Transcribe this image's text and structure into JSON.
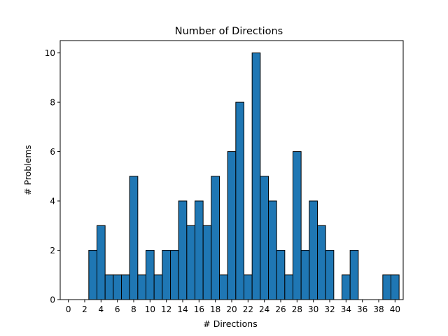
{
  "chart_data": {
    "type": "bar",
    "title": "Number of Directions",
    "xlabel": "# Directions",
    "ylabel": "# Problems",
    "x": [
      0,
      1,
      2,
      3,
      4,
      5,
      6,
      7,
      8,
      9,
      10,
      11,
      12,
      13,
      14,
      15,
      16,
      17,
      18,
      19,
      20,
      21,
      22,
      23,
      24,
      25,
      26,
      27,
      28,
      29,
      30,
      31,
      32,
      33,
      34,
      35,
      36,
      37,
      38,
      39,
      40
    ],
    "values": [
      0,
      0,
      0,
      2,
      3,
      1,
      1,
      1,
      5,
      1,
      2,
      1,
      2,
      2,
      4,
      3,
      4,
      3,
      5,
      1,
      6,
      8,
      1,
      10,
      5,
      4,
      2,
      1,
      6,
      2,
      4,
      3,
      2,
      0,
      1,
      2,
      0,
      0,
      0,
      1,
      1
    ],
    "xticks": [
      "0",
      "2",
      "4",
      "6",
      "8",
      "10",
      "12",
      "14",
      "16",
      "18",
      "20",
      "22",
      "24",
      "26",
      "28",
      "30",
      "32",
      "34",
      "36",
      "38",
      "40"
    ],
    "yticks": [
      "0",
      "2",
      "4",
      "6",
      "8",
      "10"
    ],
    "xlim": [
      -1,
      41
    ],
    "ylim": [
      0,
      10.5
    ],
    "grid": false,
    "colors": {
      "bar_fill": "#1f77b4",
      "bar_edge": "#000000"
    }
  }
}
